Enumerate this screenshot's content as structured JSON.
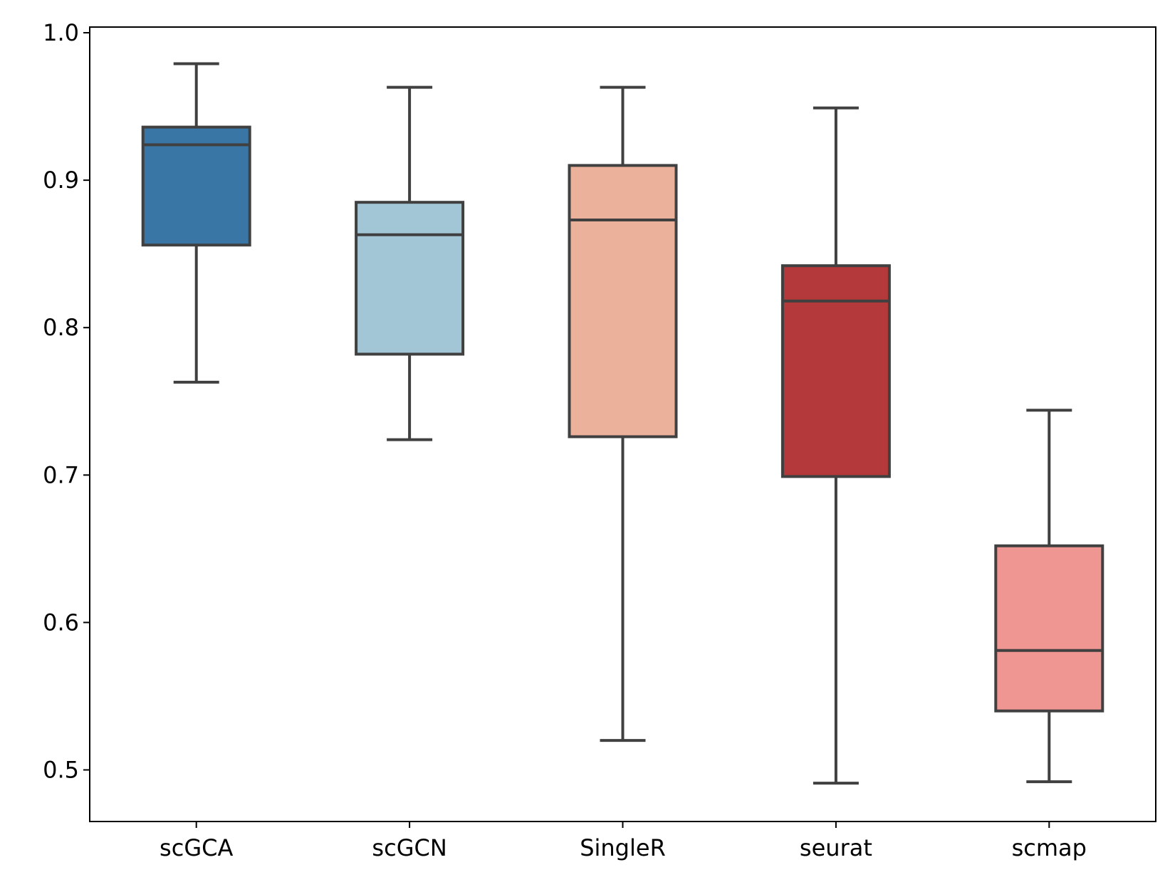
{
  "chart_data": {
    "type": "box",
    "title": "",
    "xlabel": "",
    "ylabel": "",
    "ylim": [
      0.465,
      1.002
    ],
    "yticks": [
      "0.5",
      "0.6",
      "0.7",
      "0.8",
      "0.9",
      "1.0"
    ],
    "grid": false,
    "categories": [
      "scGCA",
      "scGCN",
      "SingleR",
      "seurat",
      "scmap"
    ],
    "boxes": [
      {
        "label": "scGCA",
        "whisker_low": 0.763,
        "q1": 0.856,
        "median": 0.924,
        "q3": 0.936,
        "whisker_high": 0.979,
        "color": "#3a76a5"
      },
      {
        "label": "scGCN",
        "whisker_low": 0.724,
        "q1": 0.782,
        "median": 0.863,
        "q3": 0.885,
        "whisker_high": 0.963,
        "color": "#a3c6d6"
      },
      {
        "label": "SingleR",
        "whisker_low": 0.52,
        "q1": 0.726,
        "median": 0.873,
        "q3": 0.91,
        "whisker_high": 0.963,
        "color": "#ecb19a"
      },
      {
        "label": "seurat",
        "whisker_low": 0.491,
        "q1": 0.699,
        "median": 0.818,
        "q3": 0.842,
        "whisker_high": 0.949,
        "color": "#b3393a"
      },
      {
        "label": "scmap",
        "whisker_low": 0.492,
        "q1": 0.54,
        "median": 0.581,
        "q3": 0.652,
        "whisker_high": 0.744,
        "color": "#ef9592"
      }
    ],
    "line_color": "#404040",
    "axis_color": "#000000"
  }
}
